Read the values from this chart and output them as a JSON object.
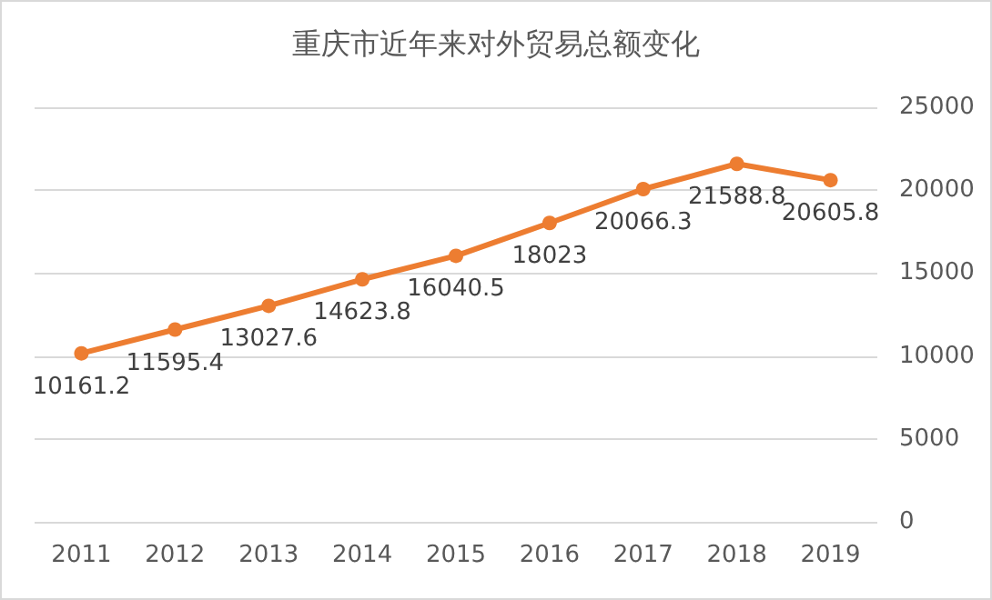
{
  "chart_data": {
    "type": "line",
    "title": "重庆市近年来对外贸易总额变化",
    "categories": [
      "2011",
      "2012",
      "2013",
      "2014",
      "2015",
      "2016",
      "2017",
      "2018",
      "2019"
    ],
    "series": [
      {
        "color": "#ed7d31",
        "values": [
          10161.2,
          11595.4,
          13027.6,
          14623.8,
          16040.5,
          18023,
          20066.3,
          21588.8,
          20605.8
        ]
      }
    ],
    "ylim": [
      0,
      25000
    ],
    "yticks": [
      0,
      5000,
      10000,
      15000,
      20000,
      25000
    ],
    "grid": "y",
    "marker": "circle",
    "line_style": "solid",
    "data_labels": true
  }
}
